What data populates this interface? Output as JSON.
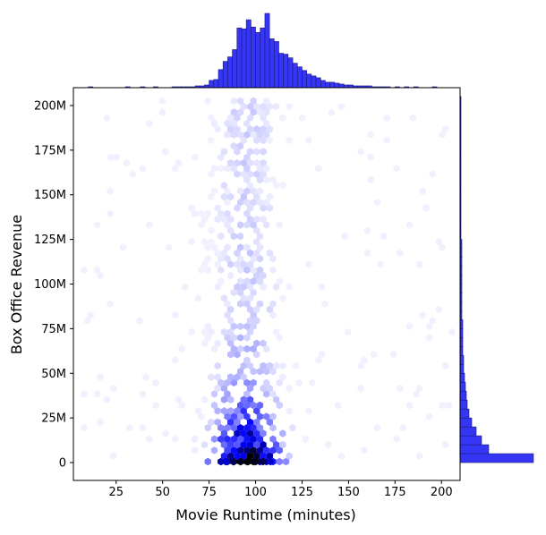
{
  "chart_data": {
    "type": "hexbin-jointplot",
    "xlabel": "Movie Runtime (minutes)",
    "ylabel": "Box Office Revenue",
    "xlim": [
      2,
      210
    ],
    "ylim": [
      -10,
      210
    ],
    "x_ticks": [
      {
        "value": 25,
        "label": "25"
      },
      {
        "value": 50,
        "label": "50"
      },
      {
        "value": 75,
        "label": "75"
      },
      {
        "value": 100,
        "label": "100"
      },
      {
        "value": 125,
        "label": "125"
      },
      {
        "value": 150,
        "label": "150"
      },
      {
        "value": 175,
        "label": "175"
      },
      {
        "value": 200,
        "label": "200"
      }
    ],
    "y_ticks": [
      {
        "value": 0,
        "label": "0"
      },
      {
        "value": 25,
        "label": "25M"
      },
      {
        "value": 50,
        "label": "50M"
      },
      {
        "value": 75,
        "label": "75M"
      },
      {
        "value": 100,
        "label": "100M"
      },
      {
        "value": 125,
        "label": "125M"
      },
      {
        "value": 150,
        "label": "150M"
      },
      {
        "value": 175,
        "label": "175M"
      },
      {
        "value": 200,
        "label": "200M"
      }
    ],
    "density_peak": {
      "runtime": 95,
      "revenue_millions": 0
    },
    "density_spread": {
      "runtime_sd": 12,
      "revenue_decay_millions": 20
    },
    "color_scale": [
      "#ffffff",
      "#0000ff",
      "#000000"
    ],
    "bar_color": "#3535f5",
    "top_marginal": {
      "bin_width": 2.5,
      "bins": [
        {
          "x": 10,
          "count": 1
        },
        {
          "x": 30,
          "count": 1
        },
        {
          "x": 38,
          "count": 1
        },
        {
          "x": 45,
          "count": 1
        },
        {
          "x": 55,
          "count": 1
        },
        {
          "x": 57.5,
          "count": 1
        },
        {
          "x": 60,
          "count": 1
        },
        {
          "x": 62.5,
          "count": 1
        },
        {
          "x": 65,
          "count": 1
        },
        {
          "x": 67.5,
          "count": 2
        },
        {
          "x": 70,
          "count": 2
        },
        {
          "x": 72.5,
          "count": 3
        },
        {
          "x": 75,
          "count": 8
        },
        {
          "x": 77.5,
          "count": 9
        },
        {
          "x": 80,
          "count": 20
        },
        {
          "x": 82.5,
          "count": 29
        },
        {
          "x": 85,
          "count": 34
        },
        {
          "x": 87.5,
          "count": 42
        },
        {
          "x": 90,
          "count": 66
        },
        {
          "x": 92.5,
          "count": 65
        },
        {
          "x": 95,
          "count": 75
        },
        {
          "x": 97.5,
          "count": 67
        },
        {
          "x": 100,
          "count": 61
        },
        {
          "x": 102.5,
          "count": 66
        },
        {
          "x": 105,
          "count": 82
        },
        {
          "x": 107.5,
          "count": 54
        },
        {
          "x": 110,
          "count": 51
        },
        {
          "x": 112.5,
          "count": 38
        },
        {
          "x": 115,
          "count": 37
        },
        {
          "x": 117.5,
          "count": 33
        },
        {
          "x": 120,
          "count": 27
        },
        {
          "x": 122.5,
          "count": 23
        },
        {
          "x": 125,
          "count": 19
        },
        {
          "x": 127.5,
          "count": 15
        },
        {
          "x": 130,
          "count": 13
        },
        {
          "x": 132.5,
          "count": 11
        },
        {
          "x": 135,
          "count": 8
        },
        {
          "x": 137.5,
          "count": 6
        },
        {
          "x": 140,
          "count": 6
        },
        {
          "x": 142.5,
          "count": 5
        },
        {
          "x": 145,
          "count": 4
        },
        {
          "x": 147.5,
          "count": 3
        },
        {
          "x": 150,
          "count": 3
        },
        {
          "x": 152.5,
          "count": 2
        },
        {
          "x": 155,
          "count": 2
        },
        {
          "x": 157.5,
          "count": 2
        },
        {
          "x": 160,
          "count": 2
        },
        {
          "x": 162.5,
          "count": 1
        },
        {
          "x": 165,
          "count": 1
        },
        {
          "x": 167.5,
          "count": 1
        },
        {
          "x": 170,
          "count": 1
        },
        {
          "x": 175,
          "count": 1
        },
        {
          "x": 180,
          "count": 1
        },
        {
          "x": 185,
          "count": 1
        },
        {
          "x": 195,
          "count": 1
        }
      ]
    },
    "right_marginal": {
      "bin_width": 5,
      "bins": [
        {
          "y": 0,
          "count": 82
        },
        {
          "y": 5,
          "count": 32
        },
        {
          "y": 10,
          "count": 24
        },
        {
          "y": 15,
          "count": 18
        },
        {
          "y": 20,
          "count": 13
        },
        {
          "y": 25,
          "count": 10
        },
        {
          "y": 30,
          "count": 8
        },
        {
          "y": 35,
          "count": 7
        },
        {
          "y": 40,
          "count": 6
        },
        {
          "y": 45,
          "count": 5
        },
        {
          "y": 50,
          "count": 4
        },
        {
          "y": 55,
          "count": 4
        },
        {
          "y": 60,
          "count": 3
        },
        {
          "y": 65,
          "count": 3
        },
        {
          "y": 70,
          "count": 3
        },
        {
          "y": 75,
          "count": 3
        },
        {
          "y": 80,
          "count": 2
        },
        {
          "y": 85,
          "count": 2
        },
        {
          "y": 90,
          "count": 2
        },
        {
          "y": 95,
          "count": 2
        },
        {
          "y": 100,
          "count": 2
        },
        {
          "y": 105,
          "count": 2
        },
        {
          "y": 110,
          "count": 2
        },
        {
          "y": 115,
          "count": 2
        },
        {
          "y": 120,
          "count": 2
        },
        {
          "y": 125,
          "count": 1
        },
        {
          "y": 130,
          "count": 1
        },
        {
          "y": 135,
          "count": 1
        },
        {
          "y": 140,
          "count": 1
        },
        {
          "y": 145,
          "count": 1
        },
        {
          "y": 150,
          "count": 1
        },
        {
          "y": 155,
          "count": 1
        },
        {
          "y": 160,
          "count": 1
        },
        {
          "y": 165,
          "count": 1
        },
        {
          "y": 170,
          "count": 1
        },
        {
          "y": 175,
          "count": 1
        },
        {
          "y": 180,
          "count": 1
        },
        {
          "y": 185,
          "count": 1
        },
        {
          "y": 190,
          "count": 1
        },
        {
          "y": 195,
          "count": 1
        },
        {
          "y": 200,
          "count": 1
        }
      ]
    },
    "grid": false,
    "legend": "none"
  }
}
